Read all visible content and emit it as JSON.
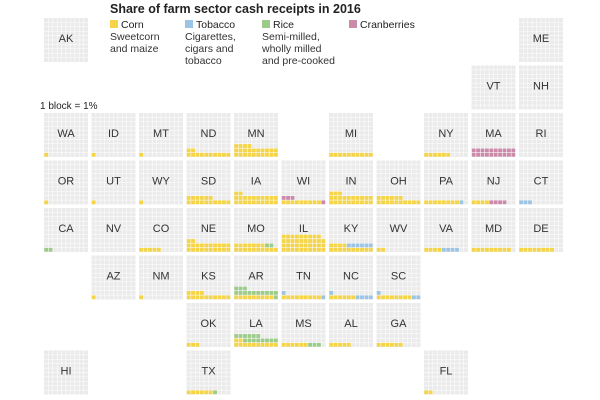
{
  "chart_data": {
    "type": "heatmap",
    "title": "Share of farm sector cash receipts in 2016",
    "scale_note": "1 block = 1%",
    "series": [
      {
        "name": "Corn",
        "description": "Sweetcorn\nand maize",
        "color": "#f5d547"
      },
      {
        "name": "Tobacco",
        "description": "Cigarettes,\ncigars and\ntobacco",
        "color": "#9cc4e4"
      },
      {
        "name": "Rice",
        "description": "Semi-milled,\nwholly milled\nand pre-cooked",
        "color": "#9ccc8a"
      },
      {
        "name": "Cranberries",
        "description": "",
        "color": "#cc8aab"
      }
    ],
    "states": [
      {
        "abbr": "AK",
        "row": 0,
        "col": 0,
        "values": {
          "Corn": 0,
          "Tobacco": 0,
          "Rice": 0,
          "Cranberries": 0
        }
      },
      {
        "abbr": "ME",
        "row": 0,
        "col": 10,
        "values": {
          "Corn": 0,
          "Tobacco": 0,
          "Rice": 0,
          "Cranberries": 0
        }
      },
      {
        "abbr": "VT",
        "row": 1,
        "col": 9,
        "values": {
          "Corn": 0,
          "Tobacco": 0,
          "Rice": 0,
          "Cranberries": 0
        }
      },
      {
        "abbr": "NH",
        "row": 1,
        "col": 10,
        "values": {
          "Corn": 0,
          "Tobacco": 0,
          "Rice": 0,
          "Cranberries": 0
        }
      },
      {
        "abbr": "WA",
        "row": 2,
        "col": 0,
        "values": {
          "Corn": 1,
          "Tobacco": 0,
          "Rice": 0,
          "Cranberries": 0
        }
      },
      {
        "abbr": "ID",
        "row": 2,
        "col": 1,
        "values": {
          "Corn": 1,
          "Tobacco": 0,
          "Rice": 0,
          "Cranberries": 0
        }
      },
      {
        "abbr": "MT",
        "row": 2,
        "col": 2,
        "values": {
          "Corn": 1,
          "Tobacco": 0,
          "Rice": 0,
          "Cranberries": 0
        }
      },
      {
        "abbr": "ND",
        "row": 2,
        "col": 3,
        "values": {
          "Corn": 12,
          "Tobacco": 0,
          "Rice": 0,
          "Cranberries": 0
        }
      },
      {
        "abbr": "MN",
        "row": 2,
        "col": 4,
        "values": {
          "Corn": 24,
          "Tobacco": 0,
          "Rice": 0,
          "Cranberries": 0
        }
      },
      {
        "abbr": "MI",
        "row": 2,
        "col": 6,
        "values": {
          "Corn": 10,
          "Tobacco": 0,
          "Rice": 0,
          "Cranberries": 0
        }
      },
      {
        "abbr": "NY",
        "row": 2,
        "col": 8,
        "values": {
          "Corn": 6,
          "Tobacco": 0,
          "Rice": 0,
          "Cranberries": 0
        }
      },
      {
        "abbr": "MA",
        "row": 2,
        "col": 9,
        "values": {
          "Corn": 0,
          "Tobacco": 0,
          "Rice": 0,
          "Cranberries": 20
        }
      },
      {
        "abbr": "RI",
        "row": 2,
        "col": 10,
        "values": {
          "Corn": 0,
          "Tobacco": 0,
          "Rice": 0,
          "Cranberries": 0
        }
      },
      {
        "abbr": "OR",
        "row": 3,
        "col": 0,
        "values": {
          "Corn": 1,
          "Tobacco": 0,
          "Rice": 0,
          "Cranberries": 0
        }
      },
      {
        "abbr": "UT",
        "row": 3,
        "col": 1,
        "values": {
          "Corn": 1,
          "Tobacco": 0,
          "Rice": 0,
          "Cranberries": 0
        }
      },
      {
        "abbr": "WY",
        "row": 3,
        "col": 2,
        "values": {
          "Corn": 1,
          "Tobacco": 0,
          "Rice": 0,
          "Cranberries": 0
        }
      },
      {
        "abbr": "SD",
        "row": 3,
        "col": 3,
        "values": {
          "Corn": 16,
          "Tobacco": 0,
          "Rice": 0,
          "Cranberries": 0
        }
      },
      {
        "abbr": "IA",
        "row": 3,
        "col": 4,
        "values": {
          "Corn": 22,
          "Tobacco": 0,
          "Rice": 0,
          "Cranberries": 0
        }
      },
      {
        "abbr": "WI",
        "row": 3,
        "col": 5,
        "values": {
          "Corn": 9,
          "Tobacco": 0,
          "Rice": 0,
          "Cranberries": 4
        }
      },
      {
        "abbr": "IN",
        "row": 3,
        "col": 6,
        "values": {
          "Corn": 23,
          "Tobacco": 0,
          "Rice": 0,
          "Cranberries": 0
        }
      },
      {
        "abbr": "OH",
        "row": 3,
        "col": 7,
        "values": {
          "Corn": 16,
          "Tobacco": 0,
          "Rice": 0,
          "Cranberries": 0
        }
      },
      {
        "abbr": "PA",
        "row": 3,
        "col": 8,
        "values": {
          "Corn": 8,
          "Tobacco": 1,
          "Rice": 0,
          "Cranberries": 0
        }
      },
      {
        "abbr": "NJ",
        "row": 3,
        "col": 9,
        "values": {
          "Corn": 4,
          "Tobacco": 0,
          "Rice": 0,
          "Cranberries": 4
        }
      },
      {
        "abbr": "CT",
        "row": 3,
        "col": 10,
        "values": {
          "Corn": 0,
          "Tobacco": 3,
          "Rice": 0,
          "Cranberries": 0
        }
      },
      {
        "abbr": "CA",
        "row": 4,
        "col": 0,
        "values": {
          "Corn": 0,
          "Tobacco": 0,
          "Rice": 2,
          "Cranberries": 0
        }
      },
      {
        "abbr": "NV",
        "row": 4,
        "col": 1,
        "values": {
          "Corn": 0,
          "Tobacco": 0,
          "Rice": 0,
          "Cranberries": 0
        }
      },
      {
        "abbr": "CO",
        "row": 4,
        "col": 2,
        "values": {
          "Corn": 5,
          "Tobacco": 0,
          "Rice": 0,
          "Cranberries": 0
        }
      },
      {
        "abbr": "NE",
        "row": 4,
        "col": 3,
        "values": {
          "Corn": 22,
          "Tobacco": 0,
          "Rice": 0,
          "Cranberries": 0
        }
      },
      {
        "abbr": "MO",
        "row": 4,
        "col": 4,
        "values": {
          "Corn": 17,
          "Tobacco": 0,
          "Rice": 2,
          "Cranberries": 0
        }
      },
      {
        "abbr": "IL",
        "row": 4,
        "col": 5,
        "values": {
          "Corn": 39,
          "Tobacco": 0,
          "Rice": 0,
          "Cranberries": 0
        }
      },
      {
        "abbr": "KY",
        "row": 4,
        "col": 6,
        "values": {
          "Corn": 14,
          "Tobacco": 6,
          "Rice": 0,
          "Cranberries": 0
        }
      },
      {
        "abbr": "WV",
        "row": 4,
        "col": 7,
        "values": {
          "Corn": 2,
          "Tobacco": 0,
          "Rice": 0,
          "Cranberries": 0
        }
      },
      {
        "abbr": "VA",
        "row": 4,
        "col": 8,
        "values": {
          "Corn": 4,
          "Tobacco": 4,
          "Rice": 0,
          "Cranberries": 0
        }
      },
      {
        "abbr": "MD",
        "row": 4,
        "col": 9,
        "values": {
          "Corn": 9,
          "Tobacco": 0,
          "Rice": 0,
          "Cranberries": 0
        }
      },
      {
        "abbr": "DE",
        "row": 4,
        "col": 10,
        "values": {
          "Corn": 8,
          "Tobacco": 0,
          "Rice": 0,
          "Cranberries": 0
        }
      },
      {
        "abbr": "AZ",
        "row": 5,
        "col": 1,
        "values": {
          "Corn": 1,
          "Tobacco": 0,
          "Rice": 0,
          "Cranberries": 0
        }
      },
      {
        "abbr": "NM",
        "row": 5,
        "col": 2,
        "values": {
          "Corn": 1,
          "Tobacco": 0,
          "Rice": 0,
          "Cranberries": 0
        }
      },
      {
        "abbr": "KS",
        "row": 5,
        "col": 3,
        "values": {
          "Corn": 14,
          "Tobacco": 0,
          "Rice": 0,
          "Cranberries": 0
        }
      },
      {
        "abbr": "AR",
        "row": 5,
        "col": 4,
        "values": {
          "Corn": 9,
          "Tobacco": 0,
          "Rice": 14,
          "Cranberries": 0
        }
      },
      {
        "abbr": "TN",
        "row": 5,
        "col": 5,
        "values": {
          "Corn": 9,
          "Tobacco": 2,
          "Rice": 0,
          "Cranberries": 0
        }
      },
      {
        "abbr": "NC",
        "row": 5,
        "col": 6,
        "values": {
          "Corn": 6,
          "Tobacco": 5,
          "Rice": 0,
          "Cranberries": 0
        }
      },
      {
        "abbr": "SC",
        "row": 5,
        "col": 7,
        "values": {
          "Corn": 8,
          "Tobacco": 3,
          "Rice": 0,
          "Cranberries": 0
        }
      },
      {
        "abbr": "OK",
        "row": 6,
        "col": 3,
        "values": {
          "Corn": 3,
          "Tobacco": 0,
          "Rice": 0,
          "Cranberries": 0
        }
      },
      {
        "abbr": "LA",
        "row": 6,
        "col": 4,
        "values": {
          "Corn": 12,
          "Tobacco": 0,
          "Rice": 14,
          "Cranberries": 0
        }
      },
      {
        "abbr": "MS",
        "row": 6,
        "col": 5,
        "values": {
          "Corn": 6,
          "Tobacco": 0,
          "Rice": 3,
          "Cranberries": 0
        }
      },
      {
        "abbr": "AL",
        "row": 6,
        "col": 6,
        "values": {
          "Corn": 5,
          "Tobacco": 0,
          "Rice": 0,
          "Cranberries": 0
        }
      },
      {
        "abbr": "GA",
        "row": 6,
        "col": 7,
        "values": {
          "Corn": 6,
          "Tobacco": 0,
          "Rice": 0,
          "Cranberries": 0
        }
      },
      {
        "abbr": "HI",
        "row": 7,
        "col": 0,
        "values": {
          "Corn": 0,
          "Tobacco": 0,
          "Rice": 0,
          "Cranberries": 0
        }
      },
      {
        "abbr": "TX",
        "row": 7,
        "col": 3,
        "values": {
          "Corn": 6,
          "Tobacco": 0,
          "Rice": 1,
          "Cranberries": 0
        }
      },
      {
        "abbr": "FL",
        "row": 7,
        "col": 8,
        "values": {
          "Corn": 2,
          "Tobacco": 0,
          "Rice": 0,
          "Cranberries": 0
        }
      }
    ]
  }
}
